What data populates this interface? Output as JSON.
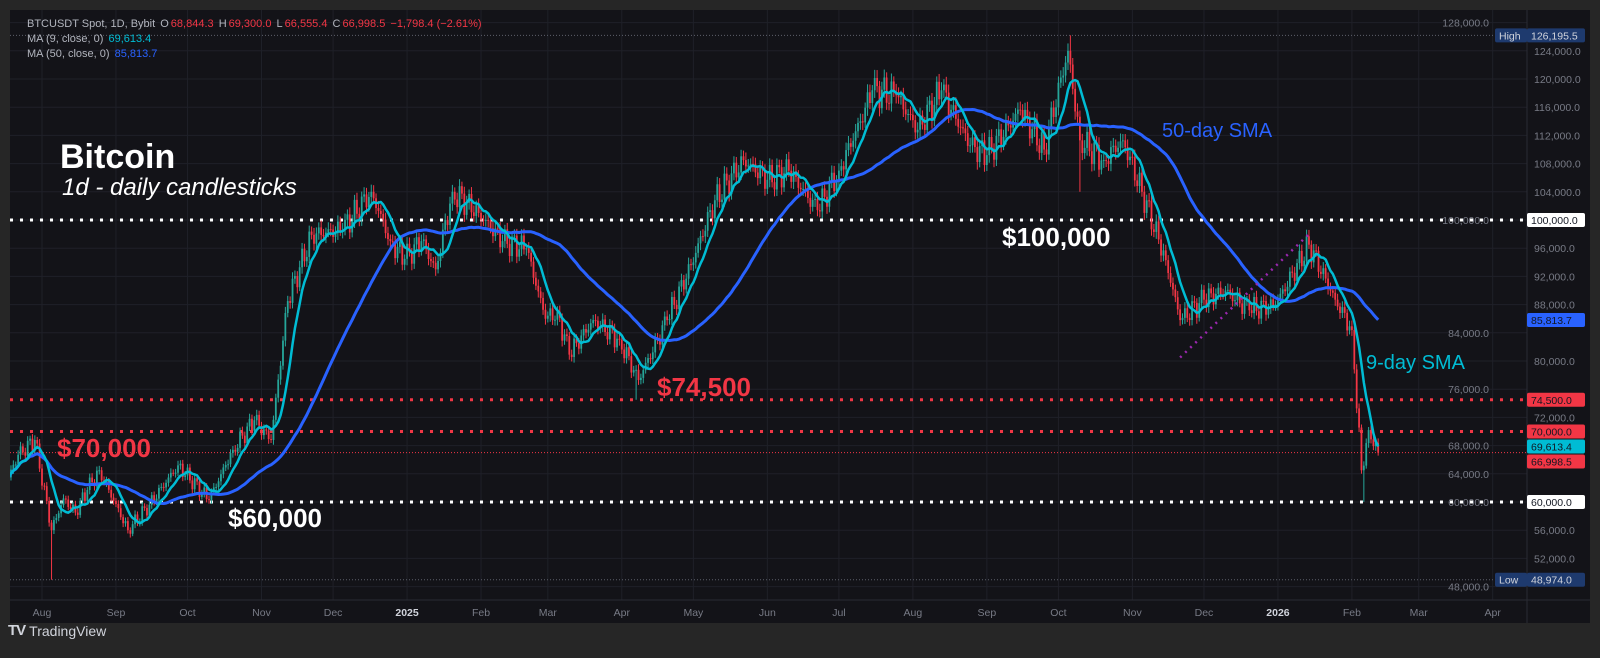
{
  "header": {
    "symbol": "BTCUSDT Spot, 1D, Bybit",
    "open_label": "O",
    "open": "68,844.3",
    "high_label": "H",
    "high": "69,300.0",
    "low_label": "L",
    "low": "66,555.4",
    "close_label": "C",
    "close": "66,998.5",
    "change": "−1,798.4 (−2.61%)",
    "ma9_label": "MA (9, close, 0)",
    "ma9_value": "69,613.4",
    "ma50_label": "MA (50, close, 0)",
    "ma50_value": "85,813.7"
  },
  "annotations": {
    "title": "Bitcoin",
    "subtitle": "1d - daily candlesticks",
    "level_100k": "$100,000",
    "level_74500": "$74,500",
    "level_70k": "$70,000",
    "level_60k": "$60,000",
    "sma50": "50-day SMA",
    "sma9": "9-day SMA"
  },
  "footer": {
    "brand": "TradingView"
  },
  "colors": {
    "up": "#26a69a",
    "down": "#f23645",
    "ma9": "#00bcd4",
    "ma50": "#2962ff",
    "trendline": "#9c27b0",
    "background": "#131318"
  },
  "chart_data": {
    "type": "candlestick",
    "interval": "1D",
    "grid": true,
    "y_axis": {
      "side": "right",
      "range": [
        48000,
        128000
      ],
      "ticks": [
        48000,
        52000,
        56000,
        60000,
        64000,
        68000,
        72000,
        76000,
        80000,
        84000,
        88000,
        92000,
        96000,
        100000,
        104000,
        108000,
        112000,
        116000,
        120000,
        124000,
        128000
      ]
    },
    "x_axis": {
      "labels": [
        {
          "date": "2024-08-01",
          "label": "Aug"
        },
        {
          "date": "2024-09-01",
          "label": "Sep"
        },
        {
          "date": "2024-10-01",
          "label": "Oct"
        },
        {
          "date": "2024-11-01",
          "label": "Nov"
        },
        {
          "date": "2024-12-01",
          "label": "Dec"
        },
        {
          "date": "2025-01-01",
          "label": "2025",
          "bold": true
        },
        {
          "date": "2025-02-01",
          "label": "Feb"
        },
        {
          "date": "2025-03-01",
          "label": "Mar"
        },
        {
          "date": "2025-04-01",
          "label": "Apr"
        },
        {
          "date": "2025-05-01",
          "label": "May"
        },
        {
          "date": "2025-06-01",
          "label": "Jun"
        },
        {
          "date": "2025-07-01",
          "label": "Jul"
        },
        {
          "date": "2025-08-01",
          "label": "Aug"
        },
        {
          "date": "2025-09-01",
          "label": "Sep"
        },
        {
          "date": "2025-10-01",
          "label": "Oct"
        },
        {
          "date": "2025-11-01",
          "label": "Nov"
        },
        {
          "date": "2025-12-01",
          "label": "Dec"
        },
        {
          "date": "2026-01-01",
          "label": "2026",
          "bold": true
        },
        {
          "date": "2026-02-01",
          "label": "Feb"
        },
        {
          "date": "2026-03-01",
          "label": "Mar"
        },
        {
          "date": "2026-04-01",
          "label": "Apr"
        }
      ]
    },
    "closes": [
      [
        "2024-07-18",
        63500
      ],
      [
        "2024-07-22",
        66700
      ],
      [
        "2024-07-29",
        68800
      ],
      [
        "2024-08-05",
        56000
      ],
      [
        "2024-08-10",
        60500
      ],
      [
        "2024-08-15",
        58500
      ],
      [
        "2024-08-20",
        61700
      ],
      [
        "2024-08-25",
        64500
      ],
      [
        "2024-09-06",
        56000
      ],
      [
        "2024-09-15",
        59600
      ],
      [
        "2024-09-27",
        65200
      ],
      [
        "2024-10-10",
        60300
      ],
      [
        "2024-10-20",
        67400
      ],
      [
        "2024-10-29",
        71600
      ],
      [
        "2024-11-05",
        68800
      ],
      [
        "2024-11-12",
        88500
      ],
      [
        "2024-11-22",
        97900
      ],
      [
        "2024-12-05",
        98600
      ],
      [
        "2024-12-17",
        104000
      ],
      [
        "2024-12-25",
        97000
      ],
      [
        "2024-12-31",
        94500
      ],
      [
        "2025-01-07",
        97000
      ],
      [
        "2025-01-13",
        93000
      ],
      [
        "2025-01-20",
        104000
      ],
      [
        "2025-01-31",
        101000
      ],
      [
        "2025-02-10",
        97000
      ],
      [
        "2025-02-20",
        96000
      ],
      [
        "2025-02-28",
        86000
      ],
      [
        "2025-03-05",
        87000
      ],
      [
        "2025-03-10",
        80900
      ],
      [
        "2025-03-20",
        85800
      ],
      [
        "2025-03-31",
        83000
      ],
      [
        "2025-04-08",
        77300
      ],
      [
        "2025-04-20",
        85800
      ],
      [
        "2025-04-30",
        93600
      ],
      [
        "2025-05-10",
        102800
      ],
      [
        "2025-05-22",
        108500
      ],
      [
        "2025-06-01",
        105700
      ],
      [
        "2025-06-10",
        107000
      ],
      [
        "2025-06-22",
        101400
      ],
      [
        "2025-07-01",
        107000
      ],
      [
        "2025-07-10",
        114000
      ],
      [
        "2025-07-15",
        118400
      ],
      [
        "2025-07-25",
        117700
      ],
      [
        "2025-08-03",
        112800
      ],
      [
        "2025-08-13",
        118400
      ],
      [
        "2025-08-25",
        110600
      ],
      [
        "2025-09-01",
        109200
      ],
      [
        "2025-09-15",
        115600
      ],
      [
        "2025-09-25",
        110000
      ],
      [
        "2025-10-05",
        124000
      ],
      [
        "2025-10-10",
        111300
      ],
      [
        "2025-10-20",
        108500
      ],
      [
        "2025-10-28",
        111300
      ],
      [
        "2025-11-05",
        104000
      ],
      [
        "2025-11-15",
        94300
      ],
      [
        "2025-11-21",
        85800
      ],
      [
        "2025-12-01",
        88700
      ],
      [
        "2025-12-10",
        90000
      ],
      [
        "2025-12-20",
        87200
      ],
      [
        "2025-12-31",
        88000
      ],
      [
        "2026-01-14",
        96500
      ],
      [
        "2026-01-25",
        88700
      ],
      [
        "2026-02-01",
        84400
      ],
      [
        "2026-02-05",
        64500
      ],
      [
        "2026-02-08",
        70200
      ],
      [
        "2026-02-12",
        66998.5
      ]
    ],
    "notable_wicks": [
      [
        "2024-08-05",
        48974
      ],
      [
        "2025-04-07",
        74500
      ],
      [
        "2025-10-06",
        126195.5
      ],
      [
        "2025-10-10",
        104000
      ],
      [
        "2026-02-06",
        60000
      ]
    ],
    "series": [
      {
        "name": "MA (9, close, 0)",
        "type": "sma",
        "period": 9,
        "last": 69613.4
      },
      {
        "name": "MA (50, close, 0)",
        "type": "sma",
        "period": 50,
        "last": 85813.7
      }
    ],
    "horizontal_levels": [
      {
        "price": 100000,
        "color": "#ffffff",
        "label": "100,000.0"
      },
      {
        "price": 74500,
        "color": "#f23645",
        "label": "74,500.0"
      },
      {
        "price": 70000,
        "color": "#f23645",
        "label": "70,000.0"
      },
      {
        "price": 60000,
        "color": "#ffffff",
        "label": "60,000.0"
      }
    ],
    "trendline": [
      [
        "2025-11-21",
        80500
      ],
      [
        "2026-01-14",
        98000
      ]
    ],
    "price_badges": [
      {
        "price": 126195.5,
        "tag": "High",
        "label": "126,195.5",
        "color": "#1e3a6e"
      },
      {
        "price": 85813.7,
        "label": "85,813.7",
        "color": "#2962ff"
      },
      {
        "price": 69613.4,
        "label": "69,613.4",
        "color": "#00bcd4"
      },
      {
        "price": 66998.5,
        "label": "66,998.5",
        "color": "#f23645"
      },
      {
        "price": 48974,
        "tag": "Low",
        "label": "48,974.0",
        "color": "#1e3a6e"
      }
    ]
  }
}
